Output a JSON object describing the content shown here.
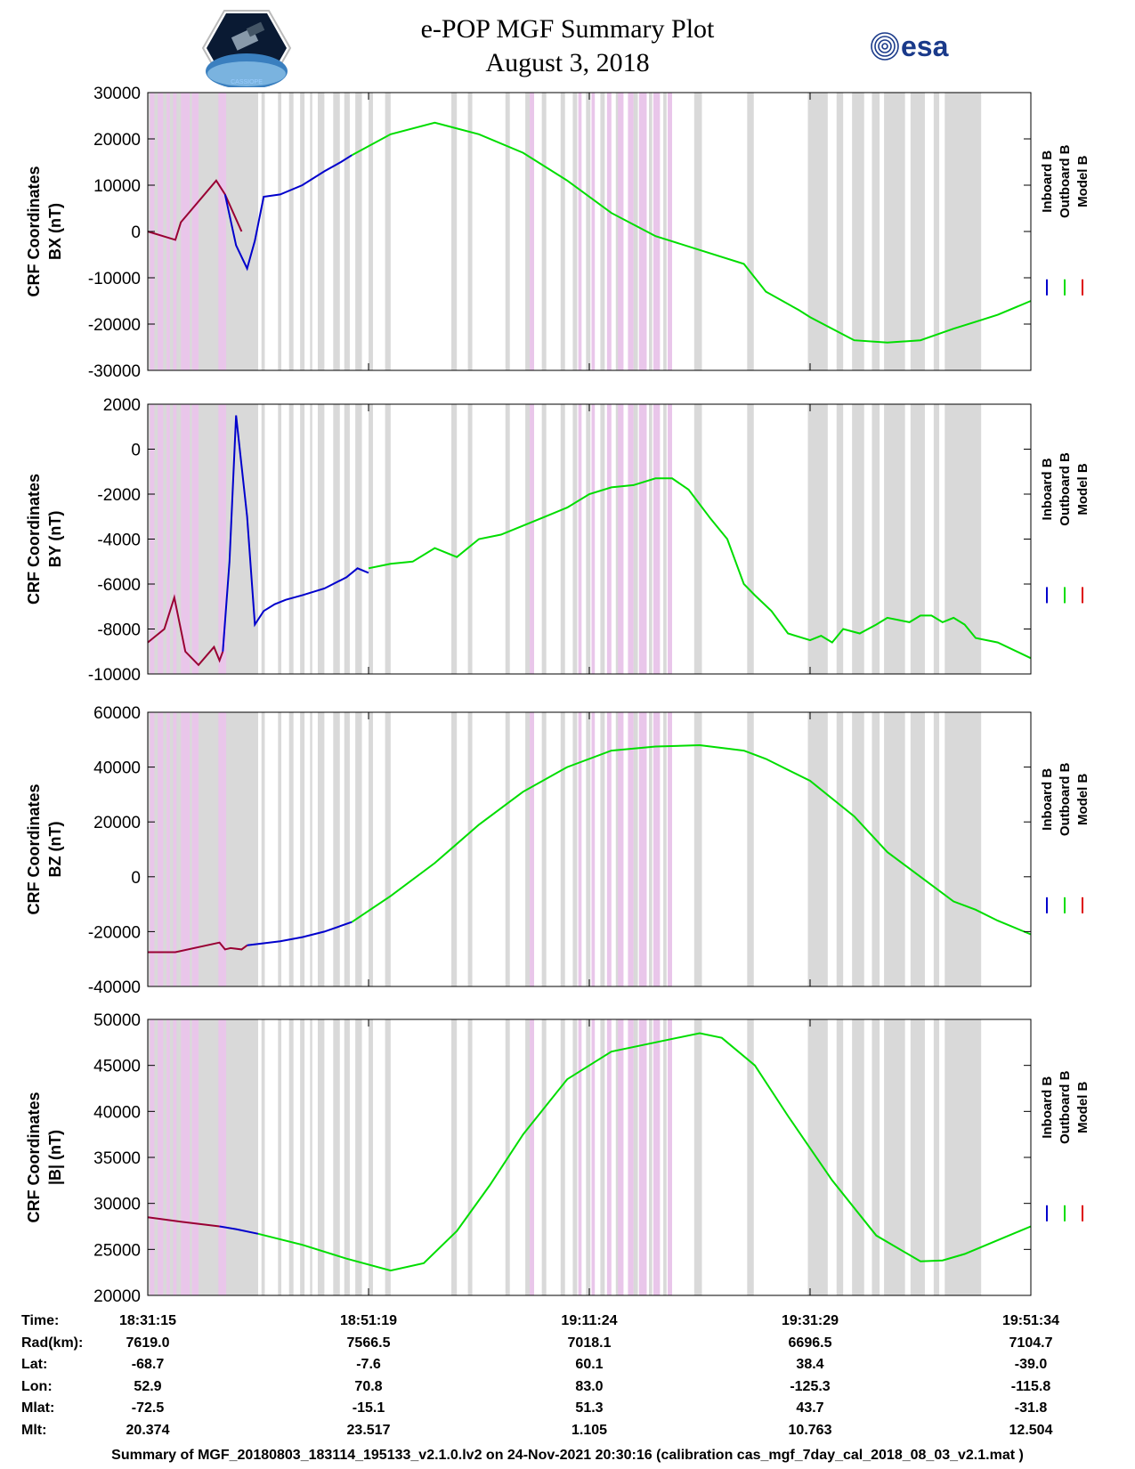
{
  "header": {
    "title_line1": "e-POP MGF Summary Plot",
    "title_line2": "August 3, 2018",
    "logo_left_text": "CASSIOPE",
    "logo_right_text": "esa"
  },
  "colors": {
    "inboard": "#0000cc",
    "outboard": "#00dd00",
    "model": "#dd0000",
    "shade_gray": "#d9d9d9",
    "shade_pink": "#e9c6ea"
  },
  "legend": [
    "Inboard B",
    "Outboard B",
    "Model B"
  ],
  "chart_data": [
    {
      "type": "line",
      "ylabel_line1": "CRF Coordinates",
      "ylabel_line2": "BX (nT)",
      "ylim": [
        -30000,
        30000
      ],
      "yticks": [
        -30000,
        -20000,
        -10000,
        0,
        10000,
        20000,
        30000
      ],
      "xtick_labels": [
        "18:31:15",
        "18:51:19",
        "19:11:24",
        "19:31:29",
        "19:51:34"
      ],
      "series": [
        {
          "name": "Model B",
          "color": "#990033",
          "x": [
            0,
            2.5,
            3,
            6.2,
            7,
            8.5
          ],
          "values": [
            0,
            -1800,
            2000,
            11000,
            8000,
            0
          ]
        },
        {
          "name": "Inboard B",
          "color": "#0000cc",
          "x": [
            7,
            8,
            9,
            9.7,
            10.5,
            12,
            14,
            16,
            17.5,
            18.5
          ],
          "values": [
            8000,
            -3000,
            -8000,
            -2000,
            7500,
            8000,
            10000,
            13000,
            15000,
            16500
          ]
        },
        {
          "name": "Outboard B",
          "color": "#00dd00",
          "x": [
            18.5,
            22,
            26,
            30,
            34,
            38,
            42,
            46,
            50,
            54,
            56,
            59,
            60,
            62,
            64,
            67,
            70,
            73,
            75,
            77,
            80
          ],
          "values": [
            16500,
            21000,
            23500,
            21000,
            17000,
            11000,
            4000,
            -1000,
            -4000,
            -7000,
            -13000,
            -17000,
            -18500,
            -21000,
            -23500,
            -24000,
            -23500,
            -21000,
            -19500,
            -18000,
            -15000
          ]
        }
      ]
    },
    {
      "type": "line",
      "ylabel_line1": "CRF Coordinates",
      "ylabel_line2": "BY (nT)",
      "ylim": [
        -10000,
        2000
      ],
      "yticks": [
        -10000,
        -8000,
        -6000,
        -4000,
        -2000,
        0,
        2000
      ],
      "xtick_labels": [
        "18:31:15",
        "18:51:19",
        "19:11:24",
        "19:31:29",
        "19:51:34"
      ],
      "series": [
        {
          "name": "Model B",
          "color": "#990033",
          "x": [
            0,
            1.5,
            2.4,
            3.4,
            4.6,
            6.0,
            6.5,
            6.8
          ],
          "values": [
            -8600,
            -8000,
            -6600,
            -9000,
            -9600,
            -8800,
            -9400,
            -9000
          ]
        },
        {
          "name": "Inboard B",
          "color": "#0000cc",
          "x": [
            6.8,
            7.4,
            8,
            9,
            9.7,
            10.5,
            11.5,
            12.5,
            14,
            16,
            18,
            19,
            20
          ],
          "values": [
            -9000,
            -5000,
            1500,
            -3000,
            -7800,
            -7200,
            -6900,
            -6700,
            -6500,
            -6200,
            -5700,
            -5300,
            -5500
          ]
        },
        {
          "name": "Outboard B",
          "color": "#00dd00",
          "x": [
            20,
            22,
            24,
            26,
            28,
            30,
            32,
            34,
            36,
            38,
            40,
            42,
            44,
            46,
            47.5,
            49,
            51,
            52.5,
            54,
            55,
            56.5,
            58,
            60,
            61,
            62,
            63,
            64.5,
            66,
            67,
            68,
            69,
            70,
            71,
            72,
            73,
            74,
            75,
            77,
            80
          ],
          "values": [
            -5300,
            -5100,
            -5000,
            -4400,
            -4800,
            -4000,
            -3800,
            -3400,
            -3000,
            -2600,
            -2000,
            -1700,
            -1600,
            -1300,
            -1300,
            -1800,
            -3100,
            -4000,
            -6000,
            -6500,
            -7200,
            -8200,
            -8500,
            -8300,
            -8600,
            -8000,
            -8200,
            -7800,
            -7500,
            -7600,
            -7700,
            -7400,
            -7400,
            -7700,
            -7500,
            -7800,
            -8400,
            -8600,
            -9300
          ]
        }
      ]
    },
    {
      "type": "line",
      "ylabel_line1": "CRF Coordinates",
      "ylabel_line2": "BZ (nT)",
      "ylim": [
        -40000,
        60000
      ],
      "yticks": [
        -40000,
        -20000,
        0,
        20000,
        40000,
        60000
      ],
      "xtick_labels": [
        "18:31:15",
        "18:51:19",
        "19:11:24",
        "19:31:29",
        "19:51:34"
      ],
      "series": [
        {
          "name": "Model B",
          "color": "#990033",
          "x": [
            0,
            2.5,
            6.5,
            7,
            7.5,
            8.5,
            9
          ],
          "values": [
            -27500,
            -27500,
            -24000,
            -26500,
            -26000,
            -26500,
            -25000
          ]
        },
        {
          "name": "Inboard B",
          "color": "#0000cc",
          "x": [
            9,
            10,
            12,
            14,
            16,
            18.5
          ],
          "values": [
            -25000,
            -24500,
            -23500,
            -22000,
            -20000,
            -16500
          ]
        },
        {
          "name": "Outboard B",
          "color": "#00dd00",
          "x": [
            18.5,
            22,
            26,
            30,
            34,
            38,
            42,
            46,
            50,
            54,
            56,
            60,
            64,
            67,
            70,
            73,
            75,
            77,
            80
          ],
          "values": [
            -16500,
            -7000,
            5000,
            19000,
            31000,
            40000,
            46000,
            47500,
            48000,
            46000,
            43000,
            35000,
            22000,
            9000,
            0,
            -9000,
            -12000,
            -16000,
            -21000
          ]
        }
      ]
    },
    {
      "type": "line",
      "ylabel_line1": "CRF Coordinates",
      "ylabel_line2": "|B| (nT)",
      "ylim": [
        20000,
        50000
      ],
      "yticks": [
        20000,
        25000,
        30000,
        35000,
        40000,
        45000,
        50000
      ],
      "xtick_labels": [
        "18:31:15",
        "18:51:19",
        "19:11:24",
        "19:31:29",
        "19:51:34"
      ],
      "series": [
        {
          "name": "Model B",
          "color": "#990033",
          "x": [
            0,
            3,
            6.5
          ],
          "values": [
            28500,
            28000,
            27500
          ]
        },
        {
          "name": "Inboard B",
          "color": "#0000cc",
          "x": [
            6.5,
            8,
            10
          ],
          "values": [
            27500,
            27200,
            26700
          ]
        },
        {
          "name": "Outboard B",
          "color": "#00dd00",
          "x": [
            10,
            14,
            18,
            22,
            25,
            28,
            31,
            34,
            38,
            42,
            46,
            50,
            52,
            55,
            58,
            62,
            66,
            70,
            72,
            74,
            76,
            78,
            80
          ],
          "values": [
            26700,
            25500,
            24000,
            22700,
            23500,
            27000,
            32000,
            37500,
            43500,
            46500,
            47500,
            48500,
            48000,
            45000,
            39500,
            32500,
            26500,
            23700,
            23800,
            24500,
            25500,
            26500,
            27500
          ]
        }
      ]
    }
  ],
  "shading": {
    "x_max": 80,
    "gray": [
      [
        0,
        10
      ],
      [
        10.3,
        10.6
      ],
      [
        11.8,
        12.1
      ],
      [
        12.8,
        13.2
      ],
      [
        13.8,
        14.2
      ],
      [
        14.7,
        14.9
      ],
      [
        15.4,
        16.0
      ],
      [
        16.8,
        17.4
      ],
      [
        17.8,
        18.3
      ],
      [
        18.8,
        19.4
      ],
      [
        20.0,
        20.4
      ],
      [
        21.5,
        22.0
      ],
      [
        27.5,
        28.0
      ],
      [
        29.0,
        29.4
      ],
      [
        32.4,
        32.8
      ],
      [
        34.2,
        34.6
      ],
      [
        35.7,
        36.1
      ],
      [
        37.4,
        37.8
      ],
      [
        38.5,
        38.9
      ],
      [
        39.7,
        40.1
      ],
      [
        41.0,
        41.4
      ],
      [
        42.4,
        42.8
      ],
      [
        44.0,
        44.4
      ],
      [
        45.4,
        45.7
      ],
      [
        46.7,
        47.0
      ],
      [
        49.5,
        50.2
      ],
      [
        54.3,
        54.9
      ],
      [
        59.8,
        61.6
      ],
      [
        62.4,
        63.0
      ],
      [
        63.8,
        64.9
      ],
      [
        65.6,
        66.3
      ],
      [
        66.7,
        68.6
      ],
      [
        69.1,
        70.4
      ],
      [
        71.2,
        71.7
      ],
      [
        72.2,
        75.5
      ]
    ],
    "pink": [
      [
        0.2,
        0.6
      ],
      [
        0.9,
        1.4
      ],
      [
        1.7,
        2.0
      ],
      [
        2.3,
        2.6
      ],
      [
        3.0,
        3.8
      ],
      [
        4.0,
        4.6
      ],
      [
        6.4,
        7.1
      ],
      [
        34.6,
        35.0
      ],
      [
        39.0,
        39.3
      ],
      [
        40.2,
        40.5
      ],
      [
        41.6,
        42.0
      ],
      [
        42.6,
        43.1
      ],
      [
        43.5,
        44.0
      ],
      [
        44.5,
        45.2
      ],
      [
        45.8,
        46.4
      ],
      [
        47.1,
        47.5
      ]
    ]
  },
  "ephemeris": {
    "labels": [
      "Time:",
      "Rad(km):",
      "Lat:",
      "Lon:",
      "Mlat:",
      "Mlt:"
    ],
    "columns": [
      [
        "18:31:15",
        "7619.0",
        "-68.7",
        "52.9",
        "-72.5",
        "20.374"
      ],
      [
        "18:51:19",
        "7566.5",
        "-7.6",
        "70.8",
        "-15.1",
        "23.517"
      ],
      [
        "19:11:24",
        "7018.1",
        "60.1",
        "83.0",
        "51.3",
        "1.105"
      ],
      [
        "19:31:29",
        "6696.5",
        "38.4",
        "-125.3",
        "43.7",
        "10.763"
      ],
      [
        "19:51:34",
        "7104.7",
        "-39.0",
        "-115.8",
        "-31.8",
        "12.504"
      ]
    ]
  },
  "footer": "Summary of MGF_20180803_183114_195133_v2.1.0.lv2 on 24-Nov-2021 20:30:16 (calibration cas_mgf_7day_cal_2018_08_03_v2.1.mat )"
}
